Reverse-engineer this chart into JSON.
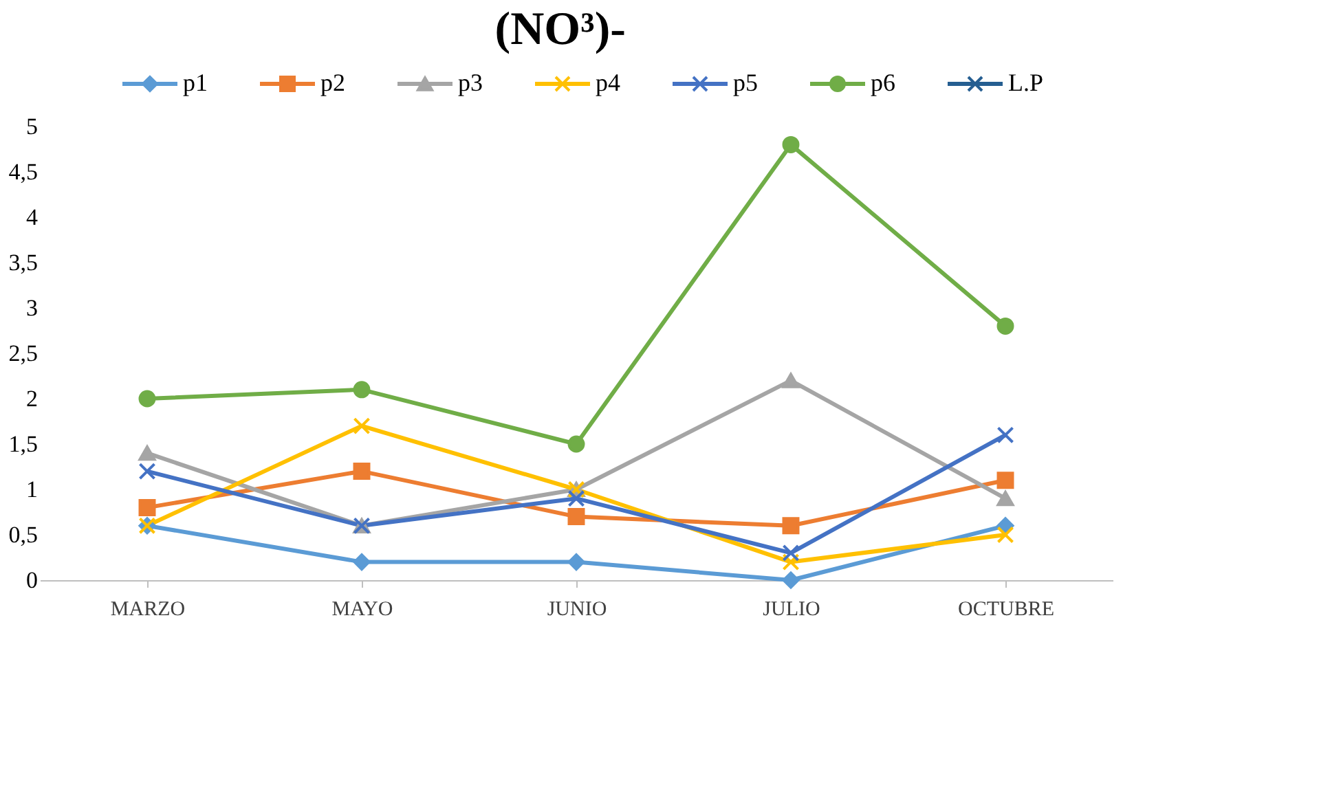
{
  "chart_data": {
    "type": "line",
    "title": "(NO³)-",
    "categories": [
      "MARZO",
      "MAYO",
      "JUNIO",
      "JULIO",
      "OCTUBRE"
    ],
    "series": [
      {
        "name": "p1",
        "color": "#5b9bd5",
        "marker": "diamond",
        "values": [
          0.6,
          0.2,
          0.2,
          0,
          0.6
        ]
      },
      {
        "name": "p2",
        "color": "#ed7d31",
        "marker": "square",
        "values": [
          0.8,
          1.2,
          0.7,
          0.6,
          1.1
        ]
      },
      {
        "name": "p3",
        "color": "#a5a5a5",
        "marker": "triangle",
        "values": [
          1.4,
          0.6,
          1.0,
          2.2,
          0.9
        ]
      },
      {
        "name": "p4",
        "color": "#ffc000",
        "marker": "cross",
        "values": [
          0.6,
          1.7,
          1.0,
          0.2,
          0.5
        ]
      },
      {
        "name": "p5",
        "color": "#4472c4",
        "marker": "cross",
        "values": [
          1.2,
          0.6,
          0.9,
          0.3,
          1.6
        ]
      },
      {
        "name": "p6",
        "color": "#70ad47",
        "marker": "circle",
        "values": [
          2.0,
          2.1,
          1.5,
          4.8,
          2.8
        ]
      },
      {
        "name": "L.P",
        "color": "#255e91",
        "marker": "cross",
        "values": [
          null,
          null,
          null,
          null,
          null
        ]
      }
    ],
    "ylim": [
      0,
      5
    ],
    "yticks": [
      0,
      {
        "value": 0.5,
        "label": "0,5"
      },
      1,
      {
        "value": 1.5,
        "label": "1,5"
      },
      2,
      {
        "value": 2.5,
        "label": "2,5"
      },
      3,
      {
        "value": 3.5,
        "label": "3,5"
      },
      4,
      {
        "value": 4.5,
        "label": "4,5"
      },
      5
    ],
    "grid": false,
    "legend": "top",
    "line_style": "solid"
  }
}
